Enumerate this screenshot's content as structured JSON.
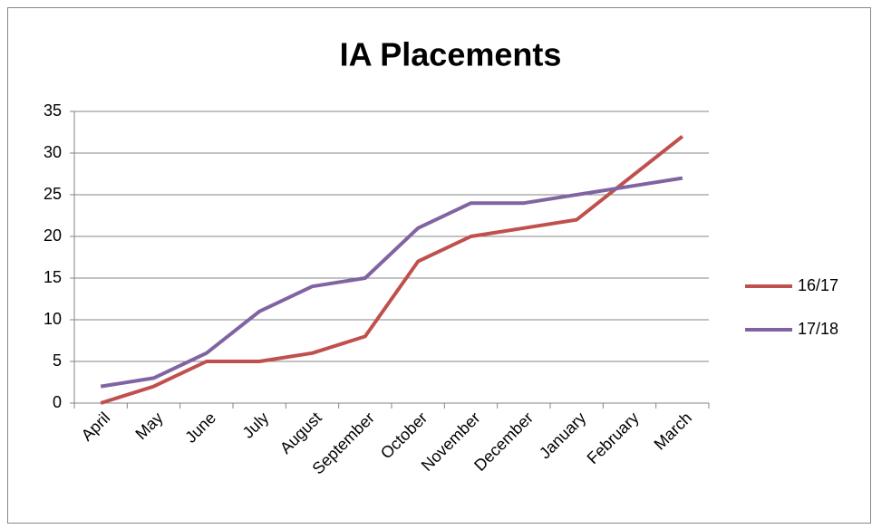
{
  "chart_data": {
    "type": "line",
    "title": "IA Placements",
    "categories": [
      "April",
      "May",
      "June",
      "July",
      "August",
      "September",
      "October",
      "November",
      "December",
      "January",
      "February",
      "March"
    ],
    "series": [
      {
        "name": "16/17",
        "color": "#c0504d",
        "values": [
          0,
          2,
          5,
          5,
          6,
          8,
          17,
          20,
          21,
          22,
          27,
          32
        ]
      },
      {
        "name": "17/18",
        "color": "#8064a2",
        "values": [
          2,
          3,
          6,
          11,
          14,
          15,
          21,
          24,
          24,
          25,
          26,
          27
        ]
      }
    ],
    "ylim": [
      0,
      35
    ],
    "yticks": [
      0,
      5,
      10,
      15,
      20,
      25,
      30,
      35
    ],
    "grid": true,
    "legend": "right"
  }
}
